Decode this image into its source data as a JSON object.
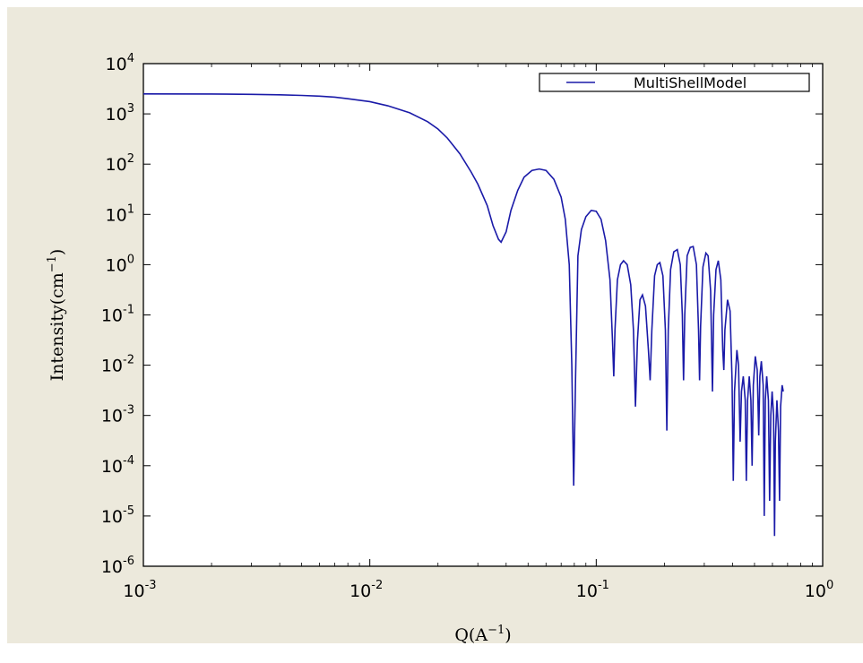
{
  "chart_data": {
    "type": "line",
    "x_scale": "log",
    "y_scale": "log",
    "xlim": [
      0.001,
      1
    ],
    "ylim": [
      1e-06,
      10000
    ],
    "xlabel": {
      "base": "Q(A",
      "sup": "−1",
      "tail": ")"
    },
    "ylabel": {
      "base": "Intensity(cm",
      "sup": "−1",
      "tail": ")"
    },
    "x_ticks": [
      {
        "value": 0.001,
        "base": "10",
        "exp": "-3"
      },
      {
        "value": 0.01,
        "base": "10",
        "exp": "-2"
      },
      {
        "value": 0.1,
        "base": "10",
        "exp": "-1"
      },
      {
        "value": 1,
        "base": "10",
        "exp": "0"
      }
    ],
    "y_ticks": [
      {
        "value": 1e-06,
        "base": "10",
        "exp": "-6"
      },
      {
        "value": 1e-05,
        "base": "10",
        "exp": "-5"
      },
      {
        "value": 0.0001,
        "base": "10",
        "exp": "-4"
      },
      {
        "value": 0.001,
        "base": "10",
        "exp": "-3"
      },
      {
        "value": 0.01,
        "base": "10",
        "exp": "-2"
      },
      {
        "value": 0.1,
        "base": "10",
        "exp": "-1"
      },
      {
        "value": 1,
        "base": "10",
        "exp": "0"
      },
      {
        "value": 10,
        "base": "10",
        "exp": "1"
      },
      {
        "value": 100,
        "base": "10",
        "exp": "2"
      },
      {
        "value": 1000,
        "base": "10",
        "exp": "3"
      },
      {
        "value": 10000,
        "base": "10",
        "exp": "4"
      }
    ],
    "grid": false,
    "legend": {
      "position": "top-right"
    },
    "series": [
      {
        "name": "MultiShellModel",
        "color": "#1a1aa8",
        "points": [
          [
            0.001,
            2500
          ],
          [
            0.002,
            2480
          ],
          [
            0.003,
            2450
          ],
          [
            0.004,
            2400
          ],
          [
            0.005,
            2330
          ],
          [
            0.006,
            2250
          ],
          [
            0.007,
            2150
          ],
          [
            0.008,
            2000
          ],
          [
            0.01,
            1750
          ],
          [
            0.012,
            1450
          ],
          [
            0.015,
            1050
          ],
          [
            0.018,
            700
          ],
          [
            0.02,
            500
          ],
          [
            0.022,
            330
          ],
          [
            0.025,
            160
          ],
          [
            0.028,
            70
          ],
          [
            0.03,
            40
          ],
          [
            0.033,
            15
          ],
          [
            0.035,
            6
          ],
          [
            0.037,
            3.2
          ],
          [
            0.038,
            2.8
          ],
          [
            0.04,
            4.5
          ],
          [
            0.042,
            12
          ],
          [
            0.045,
            30
          ],
          [
            0.048,
            55
          ],
          [
            0.052,
            75
          ],
          [
            0.056,
            80
          ],
          [
            0.06,
            75
          ],
          [
            0.065,
            50
          ],
          [
            0.07,
            22
          ],
          [
            0.073,
            8
          ],
          [
            0.076,
            1
          ],
          [
            0.078,
            0.01
          ],
          [
            0.0795,
            4e-05
          ],
          [
            0.081,
            0.005
          ],
          [
            0.083,
            1.5
          ],
          [
            0.086,
            5
          ],
          [
            0.09,
            9
          ],
          [
            0.095,
            12
          ],
          [
            0.1,
            11.5
          ],
          [
            0.105,
            8
          ],
          [
            0.11,
            3
          ],
          [
            0.115,
            0.5
          ],
          [
            0.118,
            0.03
          ],
          [
            0.1195,
            0.006
          ],
          [
            0.121,
            0.05
          ],
          [
            0.124,
            0.5
          ],
          [
            0.128,
            1
          ],
          [
            0.132,
            1.2
          ],
          [
            0.137,
            1
          ],
          [
            0.142,
            0.4
          ],
          [
            0.146,
            0.05
          ],
          [
            0.149,
            0.0015
          ],
          [
            0.152,
            0.03
          ],
          [
            0.156,
            0.2
          ],
          [
            0.16,
            0.25
          ],
          [
            0.165,
            0.15
          ],
          [
            0.17,
            0.02
          ],
          [
            0.173,
            0.005
          ],
          [
            0.176,
            0.05
          ],
          [
            0.181,
            0.6
          ],
          [
            0.186,
            1.0
          ],
          [
            0.191,
            1.1
          ],
          [
            0.197,
            0.6
          ],
          [
            0.202,
            0.05
          ],
          [
            0.205,
            0.0005
          ],
          [
            0.208,
            0.05
          ],
          [
            0.213,
            0.8
          ],
          [
            0.22,
            1.8
          ],
          [
            0.228,
            2.0
          ],
          [
            0.235,
            1.0
          ],
          [
            0.24,
            0.1
          ],
          [
            0.243,
            0.005
          ],
          [
            0.246,
            0.1
          ],
          [
            0.252,
            1.5
          ],
          [
            0.26,
            2.2
          ],
          [
            0.268,
            2.3
          ],
          [
            0.277,
            1.0
          ],
          [
            0.283,
            0.05
          ],
          [
            0.286,
            0.005
          ],
          [
            0.289,
            0.06
          ],
          [
            0.296,
            0.9
          ],
          [
            0.305,
            1.7
          ],
          [
            0.312,
            1.5
          ],
          [
            0.32,
            0.3
          ],
          [
            0.326,
            0.003
          ],
          [
            0.33,
            0.1
          ],
          [
            0.338,
            0.8
          ],
          [
            0.346,
            1.2
          ],
          [
            0.355,
            0.5
          ],
          [
            0.362,
            0.02
          ],
          [
            0.366,
            0.008
          ],
          [
            0.37,
            0.05
          ],
          [
            0.38,
            0.2
          ],
          [
            0.39,
            0.12
          ],
          [
            0.398,
            0.005
          ],
          [
            0.403,
            5e-05
          ],
          [
            0.408,
            0.003
          ],
          [
            0.418,
            0.02
          ],
          [
            0.425,
            0.01
          ],
          [
            0.432,
            0.0003
          ],
          [
            0.438,
            0.003
          ],
          [
            0.446,
            0.006
          ],
          [
            0.455,
            0.002
          ],
          [
            0.46,
            5e-05
          ],
          [
            0.466,
            0.002
          ],
          [
            0.474,
            0.006
          ],
          [
            0.482,
            0.002
          ],
          [
            0.488,
            0.0001
          ],
          [
            0.494,
            0.004
          ],
          [
            0.504,
            0.015
          ],
          [
            0.514,
            0.008
          ],
          [
            0.522,
            0.0004
          ],
          [
            0.528,
            0.006
          ],
          [
            0.536,
            0.012
          ],
          [
            0.546,
            0.004
          ],
          [
            0.552,
            1e-05
          ],
          [
            0.558,
            0.002
          ],
          [
            0.566,
            0.006
          ],
          [
            0.576,
            0.002
          ],
          [
            0.583,
            2e-05
          ],
          [
            0.59,
            0.001
          ],
          [
            0.598,
            0.003
          ],
          [
            0.607,
            0.001
          ],
          [
            0.613,
            4e-06
          ],
          [
            0.618,
            0.0003
          ],
          [
            0.628,
            0.002
          ],
          [
            0.638,
            0.0005
          ],
          [
            0.645,
            2e-05
          ],
          [
            0.652,
            0.0015
          ],
          [
            0.662,
            0.004
          ],
          [
            0.67,
            0.003
          ]
        ]
      }
    ]
  }
}
